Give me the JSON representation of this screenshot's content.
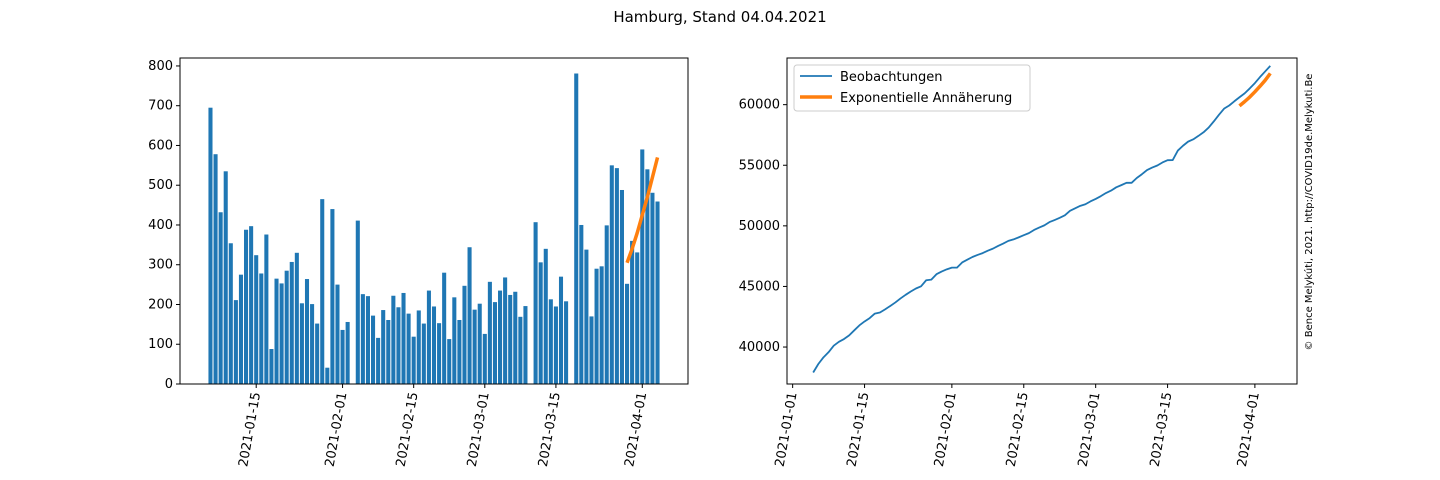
{
  "figure": {
    "title": "Hamburg, Stand 04.04.2021",
    "watermark": "© Bence Melykúti, 2021. http://COVID19de.Melykuti.Be"
  },
  "colors": {
    "bars": "#1f77b4",
    "fit": "#ff7f0e",
    "line": "#1f77b4",
    "watermark": "#c8c8c8"
  },
  "chart_data": [
    {
      "type": "bar",
      "title": "",
      "xlabel": "",
      "ylabel": "",
      "ylim": [
        0,
        820
      ],
      "yticks": [
        0,
        100,
        200,
        300,
        400,
        500,
        600,
        700,
        800
      ],
      "xticks": [
        "2021-01-15",
        "2021-02-01",
        "2021-02-15",
        "2021-03-01",
        "2021-03-15",
        "2021-04-01"
      ],
      "grid": false,
      "series": [
        {
          "name": "",
          "x": [
            "2021-01-06",
            "2021-01-07",
            "2021-01-08",
            "2021-01-09",
            "2021-01-10",
            "2021-01-11",
            "2021-01-12",
            "2021-01-13",
            "2021-01-14",
            "2021-01-15",
            "2021-01-16",
            "2021-01-17",
            "2021-01-18",
            "2021-01-19",
            "2021-01-20",
            "2021-01-21",
            "2021-01-22",
            "2021-01-23",
            "2021-01-24",
            "2021-01-25",
            "2021-01-26",
            "2021-01-27",
            "2021-01-28",
            "2021-01-29",
            "2021-01-30",
            "2021-01-31",
            "2021-02-01",
            "2021-02-02",
            "2021-02-03",
            "2021-02-04",
            "2021-02-05",
            "2021-02-06",
            "2021-02-07",
            "2021-02-08",
            "2021-02-09",
            "2021-02-10",
            "2021-02-11",
            "2021-02-12",
            "2021-02-13",
            "2021-02-14",
            "2021-02-15",
            "2021-02-16",
            "2021-02-17",
            "2021-02-18",
            "2021-02-19",
            "2021-02-20",
            "2021-02-21",
            "2021-02-22",
            "2021-02-23",
            "2021-02-24",
            "2021-02-25",
            "2021-02-26",
            "2021-02-27",
            "2021-02-28",
            "2021-03-01",
            "2021-03-02",
            "2021-03-03",
            "2021-03-04",
            "2021-03-05",
            "2021-03-06",
            "2021-03-07",
            "2021-03-08",
            "2021-03-09",
            "2021-03-10",
            "2021-03-11",
            "2021-03-12",
            "2021-03-13",
            "2021-03-14",
            "2021-03-15",
            "2021-03-16",
            "2021-03-17",
            "2021-03-18",
            "2021-03-19",
            "2021-03-20",
            "2021-03-21",
            "2021-03-22",
            "2021-03-23",
            "2021-03-24",
            "2021-03-25",
            "2021-03-26",
            "2021-03-27",
            "2021-03-28",
            "2021-03-29",
            "2021-03-30",
            "2021-03-31",
            "2021-04-01",
            "2021-04-02",
            "2021-04-03",
            "2021-04-04"
          ],
          "values": [
            695,
            578,
            432,
            535,
            354,
            211,
            275,
            388,
            397,
            324,
            278,
            376,
            88,
            265,
            253,
            285,
            307,
            330,
            203,
            264,
            201,
            152,
            465,
            41,
            440,
            250,
            136,
            156,
            0,
            411,
            226,
            221,
            172,
            116,
            186,
            161,
            222,
            193,
            229,
            177,
            119,
            185,
            152,
            235,
            195,
            153,
            280,
            113,
            218,
            161,
            247,
            344,
            187,
            202,
            126,
            257,
            206,
            235,
            268,
            224,
            232,
            169,
            196,
            0,
            407,
            306,
            340,
            213,
            195,
            270,
            208,
            0,
            781,
            400,
            338,
            170,
            290,
            296,
            399,
            550,
            543,
            488,
            252,
            360,
            331,
            590,
            540,
            481,
            459
          ]
        },
        {
          "name": "",
          "type": "line",
          "x": [
            "2021-03-29",
            "2021-03-30",
            "2021-03-31",
            "2021-04-01",
            "2021-04-02",
            "2021-04-03",
            "2021-04-04"
          ],
          "values": [
            305,
            340,
            380,
            425,
            470,
            520,
            570
          ]
        }
      ]
    },
    {
      "type": "line",
      "title": "",
      "xlabel": "",
      "ylabel": "",
      "ylim": [
        36950,
        63850
      ],
      "yticks": [
        40000,
        45000,
        50000,
        55000,
        60000
      ],
      "xticks": [
        "2021-01-01",
        "2021-01-15",
        "2021-02-01",
        "2021-02-15",
        "2021-03-01",
        "2021-03-15",
        "2021-04-01"
      ],
      "grid": false,
      "legend_position": "top-left",
      "series": [
        {
          "name": "Beobachtungen",
          "x": [
            "2021-01-05",
            "2021-01-06",
            "2021-01-07",
            "2021-01-08",
            "2021-01-09",
            "2021-01-10",
            "2021-01-11",
            "2021-01-12",
            "2021-01-13",
            "2021-01-14",
            "2021-01-15",
            "2021-01-16",
            "2021-01-17",
            "2021-01-18",
            "2021-01-19",
            "2021-01-20",
            "2021-01-21",
            "2021-01-22",
            "2021-01-23",
            "2021-01-24",
            "2021-01-25",
            "2021-01-26",
            "2021-01-27",
            "2021-01-28",
            "2021-01-29",
            "2021-01-30",
            "2021-01-31",
            "2021-02-01",
            "2021-02-02",
            "2021-02-03",
            "2021-02-04",
            "2021-02-05",
            "2021-02-06",
            "2021-02-07",
            "2021-02-08",
            "2021-02-09",
            "2021-02-10",
            "2021-02-11",
            "2021-02-12",
            "2021-02-13",
            "2021-02-14",
            "2021-02-15",
            "2021-02-16",
            "2021-02-17",
            "2021-02-18",
            "2021-02-19",
            "2021-02-20",
            "2021-02-21",
            "2021-02-22",
            "2021-02-23",
            "2021-02-24",
            "2021-02-25",
            "2021-02-26",
            "2021-02-27",
            "2021-02-28",
            "2021-03-01",
            "2021-03-02",
            "2021-03-03",
            "2021-03-04",
            "2021-03-05",
            "2021-03-06",
            "2021-03-07",
            "2021-03-08",
            "2021-03-09",
            "2021-03-10",
            "2021-03-11",
            "2021-03-12",
            "2021-03-13",
            "2021-03-14",
            "2021-03-15",
            "2021-03-16",
            "2021-03-17",
            "2021-03-18",
            "2021-03-19",
            "2021-03-20",
            "2021-03-21",
            "2021-03-22",
            "2021-03-23",
            "2021-03-24",
            "2021-03-25",
            "2021-03-26",
            "2021-03-27",
            "2021-03-28",
            "2021-03-29",
            "2021-03-30",
            "2021-03-31",
            "2021-04-01",
            "2021-04-02",
            "2021-04-03",
            "2021-04-04"
          ],
          "values": [
            37900,
            38600,
            39150,
            39580,
            40110,
            40430,
            40660,
            40960,
            41380,
            41790,
            42110,
            42390,
            42760,
            42850,
            43110,
            43390,
            43680,
            44010,
            44310,
            44580,
            44830,
            45010,
            45510,
            45560,
            46010,
            46230,
            46410,
            46550,
            46550,
            46980,
            47210,
            47430,
            47600,
            47750,
            47950,
            48120,
            48340,
            48540,
            48760,
            48880,
            49050,
            49230,
            49400,
            49660,
            49860,
            50040,
            50310,
            50480,
            50660,
            50870,
            51240,
            51450,
            51650,
            51780,
            52020,
            52220,
            52450,
            52710,
            52910,
            53180,
            53360,
            53550,
            53550,
            53950,
            54260,
            54600,
            54810,
            54980,
            55230,
            55420,
            55430,
            56210,
            56610,
            56950,
            57140,
            57420,
            57720,
            58110,
            58620,
            59160,
            59670,
            59930,
            60280,
            60610,
            60930,
            61340,
            61780,
            62280,
            62740,
            63200
          ]
        },
        {
          "name": "Exponentielle Annäherung",
          "x": [
            "2021-03-29",
            "2021-03-30",
            "2021-03-31",
            "2021-04-01",
            "2021-04-02",
            "2021-04-03",
            "2021-04-04"
          ],
          "values": [
            59900,
            60250,
            60630,
            61060,
            61520,
            62010,
            62580
          ]
        }
      ]
    }
  ]
}
